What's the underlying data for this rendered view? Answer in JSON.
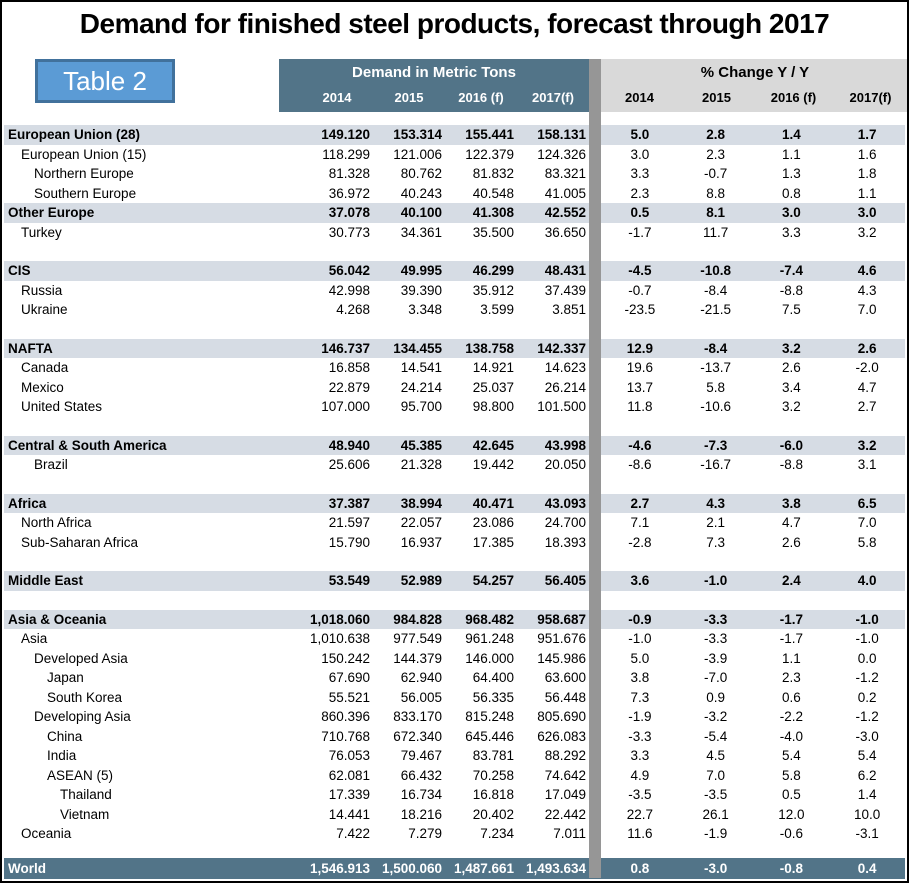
{
  "title": "Demand for finished steel products, forecast through 2017",
  "table_label": "Table 2",
  "colors": {
    "header_dark": "#527488",
    "header_light": "#D9D9D9",
    "section_row": "#D6DCE4",
    "divider": "#969696",
    "table_label_bg": "#5B9BD5",
    "table_label_border": "#41719C"
  },
  "chart_data": {
    "type": "table",
    "title": "Demand for finished steel products, forecast through 2017",
    "demand_group_label": "Demand in Metric Tons",
    "pct_group_label": "% Change Y / Y",
    "demand_years": [
      "2014",
      "2015",
      "2016 (f)",
      "2017(f)"
    ],
    "pct_years": [
      "2014",
      "2015",
      "2016 (f)",
      "2017(f)"
    ],
    "rows": [
      {
        "label": "European Union (28)",
        "indent": 0,
        "style": "section",
        "demand": [
          "149.120",
          "153.314",
          "155.441",
          "158.131"
        ],
        "pct": [
          "5.0",
          "2.8",
          "1.4",
          "1.7"
        ]
      },
      {
        "label": "European Union (15)",
        "indent": 1,
        "style": "data",
        "demand": [
          "118.299",
          "121.006",
          "122.379",
          "124.326"
        ],
        "pct": [
          "3.0",
          "2.3",
          "1.1",
          "1.6"
        ]
      },
      {
        "label": "Northern Europe",
        "indent": 2,
        "style": "data",
        "demand": [
          "81.328",
          "80.762",
          "81.832",
          "83.321"
        ],
        "pct": [
          "3.3",
          "-0.7",
          "1.3",
          "1.8"
        ]
      },
      {
        "label": "Southern Europe",
        "indent": 2,
        "style": "data",
        "demand": [
          "36.972",
          "40.243",
          "40.548",
          "41.005"
        ],
        "pct": [
          "2.3",
          "8.8",
          "0.8",
          "1.1"
        ]
      },
      {
        "label": "Other Europe",
        "indent": 0,
        "style": "section",
        "demand": [
          "37.078",
          "40.100",
          "41.308",
          "42.552"
        ],
        "pct": [
          "0.5",
          "8.1",
          "3.0",
          "3.0"
        ]
      },
      {
        "label": "Turkey",
        "indent": 1,
        "style": "data",
        "demand": [
          "30.773",
          "34.361",
          "35.500",
          "36.650"
        ],
        "pct": [
          "-1.7",
          "11.7",
          "3.3",
          "3.2"
        ]
      },
      {
        "style": "spacer"
      },
      {
        "label": "CIS",
        "indent": 0,
        "style": "section",
        "demand": [
          "56.042",
          "49.995",
          "46.299",
          "48.431"
        ],
        "pct": [
          "-4.5",
          "-10.8",
          "-7.4",
          "4.6"
        ]
      },
      {
        "label": "Russia",
        "indent": 1,
        "style": "data",
        "demand": [
          "42.998",
          "39.390",
          "35.912",
          "37.439"
        ],
        "pct": [
          "-0.7",
          "-8.4",
          "-8.8",
          "4.3"
        ]
      },
      {
        "label": "Ukraine",
        "indent": 1,
        "style": "data",
        "demand": [
          "4.268",
          "3.348",
          "3.599",
          "3.851"
        ],
        "pct": [
          "-23.5",
          "-21.5",
          "7.5",
          "7.0"
        ]
      },
      {
        "style": "spacer"
      },
      {
        "label": "NAFTA",
        "indent": 0,
        "style": "section",
        "demand": [
          "146.737",
          "134.455",
          "138.758",
          "142.337"
        ],
        "pct": [
          "12.9",
          "-8.4",
          "3.2",
          "2.6"
        ]
      },
      {
        "label": "Canada",
        "indent": 1,
        "style": "data",
        "demand": [
          "16.858",
          "14.541",
          "14.921",
          "14.623"
        ],
        "pct": [
          "19.6",
          "-13.7",
          "2.6",
          "-2.0"
        ]
      },
      {
        "label": "Mexico",
        "indent": 1,
        "style": "data",
        "demand": [
          "22.879",
          "24.214",
          "25.037",
          "26.214"
        ],
        "pct": [
          "13.7",
          "5.8",
          "3.4",
          "4.7"
        ]
      },
      {
        "label": "United States",
        "indent": 1,
        "style": "data",
        "demand": [
          "107.000",
          "95.700",
          "98.800",
          "101.500"
        ],
        "pct": [
          "11.8",
          "-10.6",
          "3.2",
          "2.7"
        ]
      },
      {
        "style": "spacer"
      },
      {
        "label": "Central & South America",
        "indent": 0,
        "style": "section",
        "demand": [
          "48.940",
          "45.385",
          "42.645",
          "43.998"
        ],
        "pct": [
          "-4.6",
          "-7.3",
          "-6.0",
          "3.2"
        ]
      },
      {
        "label": "Brazil",
        "indent": 2,
        "style": "data",
        "demand": [
          "25.606",
          "21.328",
          "19.442",
          "20.050"
        ],
        "pct": [
          "-8.6",
          "-16.7",
          "-8.8",
          "3.1"
        ]
      },
      {
        "style": "spacer"
      },
      {
        "label": "Africa",
        "indent": 0,
        "style": "section",
        "demand": [
          "37.387",
          "38.994",
          "40.471",
          "43.093"
        ],
        "pct": [
          "2.7",
          "4.3",
          "3.8",
          "6.5"
        ]
      },
      {
        "label": "North Africa",
        "indent": 1,
        "style": "data",
        "demand": [
          "21.597",
          "22.057",
          "23.086",
          "24.700"
        ],
        "pct": [
          "7.1",
          "2.1",
          "4.7",
          "7.0"
        ]
      },
      {
        "label": "Sub-Saharan Africa",
        "indent": 1,
        "style": "data",
        "demand": [
          "15.790",
          "16.937",
          "17.385",
          "18.393"
        ],
        "pct": [
          "-2.8",
          "7.3",
          "2.6",
          "5.8"
        ]
      },
      {
        "style": "spacer"
      },
      {
        "label": "Middle East",
        "indent": 0,
        "style": "section",
        "demand": [
          "53.549",
          "52.989",
          "54.257",
          "56.405"
        ],
        "pct": [
          "3.6",
          "-1.0",
          "2.4",
          "4.0"
        ]
      },
      {
        "style": "spacer"
      },
      {
        "label": "Asia & Oceania",
        "indent": 0,
        "style": "section",
        "demand": [
          "1,018.060",
          "984.828",
          "968.482",
          "958.687"
        ],
        "pct": [
          "-0.9",
          "-3.3",
          "-1.7",
          "-1.0"
        ]
      },
      {
        "label": "Asia",
        "indent": 1,
        "style": "data",
        "demand": [
          "1,010.638",
          "977.549",
          "961.248",
          "951.676"
        ],
        "pct": [
          "-1.0",
          "-3.3",
          "-1.7",
          "-1.0"
        ]
      },
      {
        "label": "Developed Asia",
        "indent": 2,
        "style": "data",
        "demand": [
          "150.242",
          "144.379",
          "146.000",
          "145.986"
        ],
        "pct": [
          "5.0",
          "-3.9",
          "1.1",
          "0.0"
        ]
      },
      {
        "label": "Japan",
        "indent": 3,
        "style": "data",
        "demand": [
          "67.690",
          "62.940",
          "64.400",
          "63.600"
        ],
        "pct": [
          "3.8",
          "-7.0",
          "2.3",
          "-1.2"
        ]
      },
      {
        "label": "South Korea",
        "indent": 3,
        "style": "data",
        "demand": [
          "55.521",
          "56.005",
          "56.335",
          "56.448"
        ],
        "pct": [
          "7.3",
          "0.9",
          "0.6",
          "0.2"
        ]
      },
      {
        "label": "Developing Asia",
        "indent": 2,
        "style": "data",
        "demand": [
          "860.396",
          "833.170",
          "815.248",
          "805.690"
        ],
        "pct": [
          "-1.9",
          "-3.2",
          "-2.2",
          "-1.2"
        ]
      },
      {
        "label": "China",
        "indent": 3,
        "style": "data",
        "demand": [
          "710.768",
          "672.340",
          "645.446",
          "626.083"
        ],
        "pct": [
          "-3.3",
          "-5.4",
          "-4.0",
          "-3.0"
        ]
      },
      {
        "label": "India",
        "indent": 3,
        "style": "data",
        "demand": [
          "76.053",
          "79.467",
          "83.781",
          "88.292"
        ],
        "pct": [
          "3.3",
          "4.5",
          "5.4",
          "5.4"
        ]
      },
      {
        "label": "ASEAN (5)",
        "indent": 3,
        "style": "data",
        "demand": [
          "62.081",
          "66.432",
          "70.258",
          "74.642"
        ],
        "pct": [
          "4.9",
          "7.0",
          "5.8",
          "6.2"
        ]
      },
      {
        "label": "Thailand",
        "indent": 4,
        "style": "data",
        "demand": [
          "17.339",
          "16.734",
          "16.818",
          "17.049"
        ],
        "pct": [
          "-3.5",
          "-3.5",
          "0.5",
          "1.4"
        ]
      },
      {
        "label": "Vietnam",
        "indent": 4,
        "style": "data",
        "demand": [
          "14.441",
          "18.216",
          "20.402",
          "22.442"
        ],
        "pct": [
          "22.7",
          "26.1",
          "12.0",
          "10.0"
        ]
      },
      {
        "label": "Oceania",
        "indent": 1,
        "style": "data",
        "demand": [
          "7.422",
          "7.279",
          "7.234",
          "7.011"
        ],
        "pct": [
          "11.6",
          "-1.9",
          "-0.6",
          "-3.1"
        ]
      },
      {
        "style": "spacer-tall"
      },
      {
        "label": "World",
        "indent": 0,
        "style": "world",
        "demand": [
          "1,546.913",
          "1,500.060",
          "1,487.661",
          "1,493.634"
        ],
        "pct": [
          "0.8",
          "-3.0",
          "-0.8",
          "0.4"
        ]
      }
    ]
  }
}
